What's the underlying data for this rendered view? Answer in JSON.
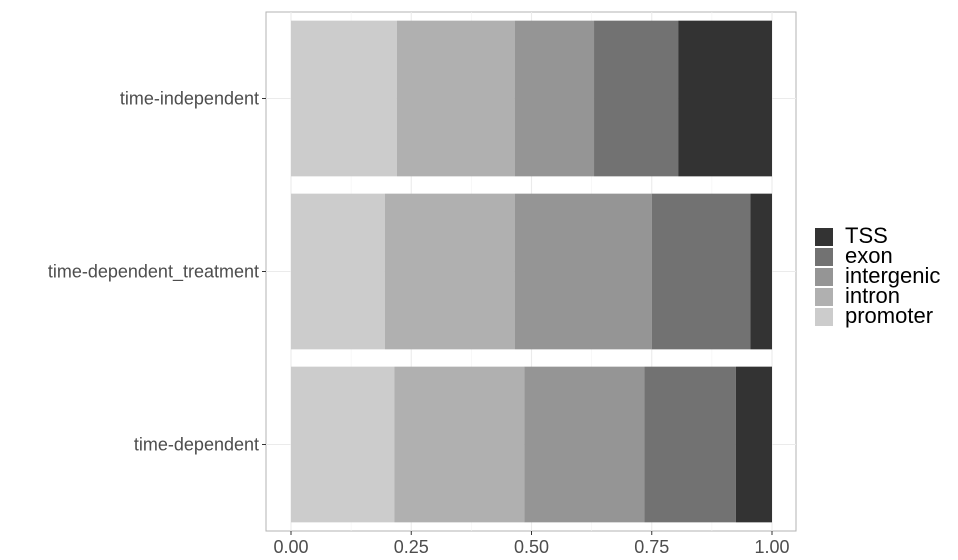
{
  "chart_data": {
    "type": "bar",
    "orientation": "horizontal",
    "stacked": "proportional",
    "title": "",
    "xlabel": "",
    "ylabel": "",
    "xlim": [
      0,
      1
    ],
    "x_ticks": [
      "0.00",
      "0.25",
      "0.50",
      "0.75",
      "1.00"
    ],
    "x_tick_values": [
      0,
      0.25,
      0.5,
      0.75,
      1.0
    ],
    "categories": [
      "time-independent",
      "time-dependent_treatment",
      "time-dependent"
    ],
    "grid": true,
    "legend_position": "right",
    "series": [
      {
        "name": "promoter",
        "color": "#cccccc",
        "values": [
          0.22,
          0.195,
          0.215
        ]
      },
      {
        "name": "intron",
        "color": "#b0b0b0",
        "values": [
          0.245,
          0.27,
          0.27
        ]
      },
      {
        "name": "intergenic",
        "color": "#959595",
        "values": [
          0.165,
          0.285,
          0.25
        ]
      },
      {
        "name": "exon",
        "color": "#727272",
        "values": [
          0.175,
          0.205,
          0.19
        ]
      },
      {
        "name": "TSS",
        "color": "#333333",
        "values": [
          0.195,
          0.045,
          0.075
        ]
      }
    ],
    "legend_order": [
      "TSS",
      "exon",
      "intergenic",
      "intron",
      "promoter"
    ]
  }
}
